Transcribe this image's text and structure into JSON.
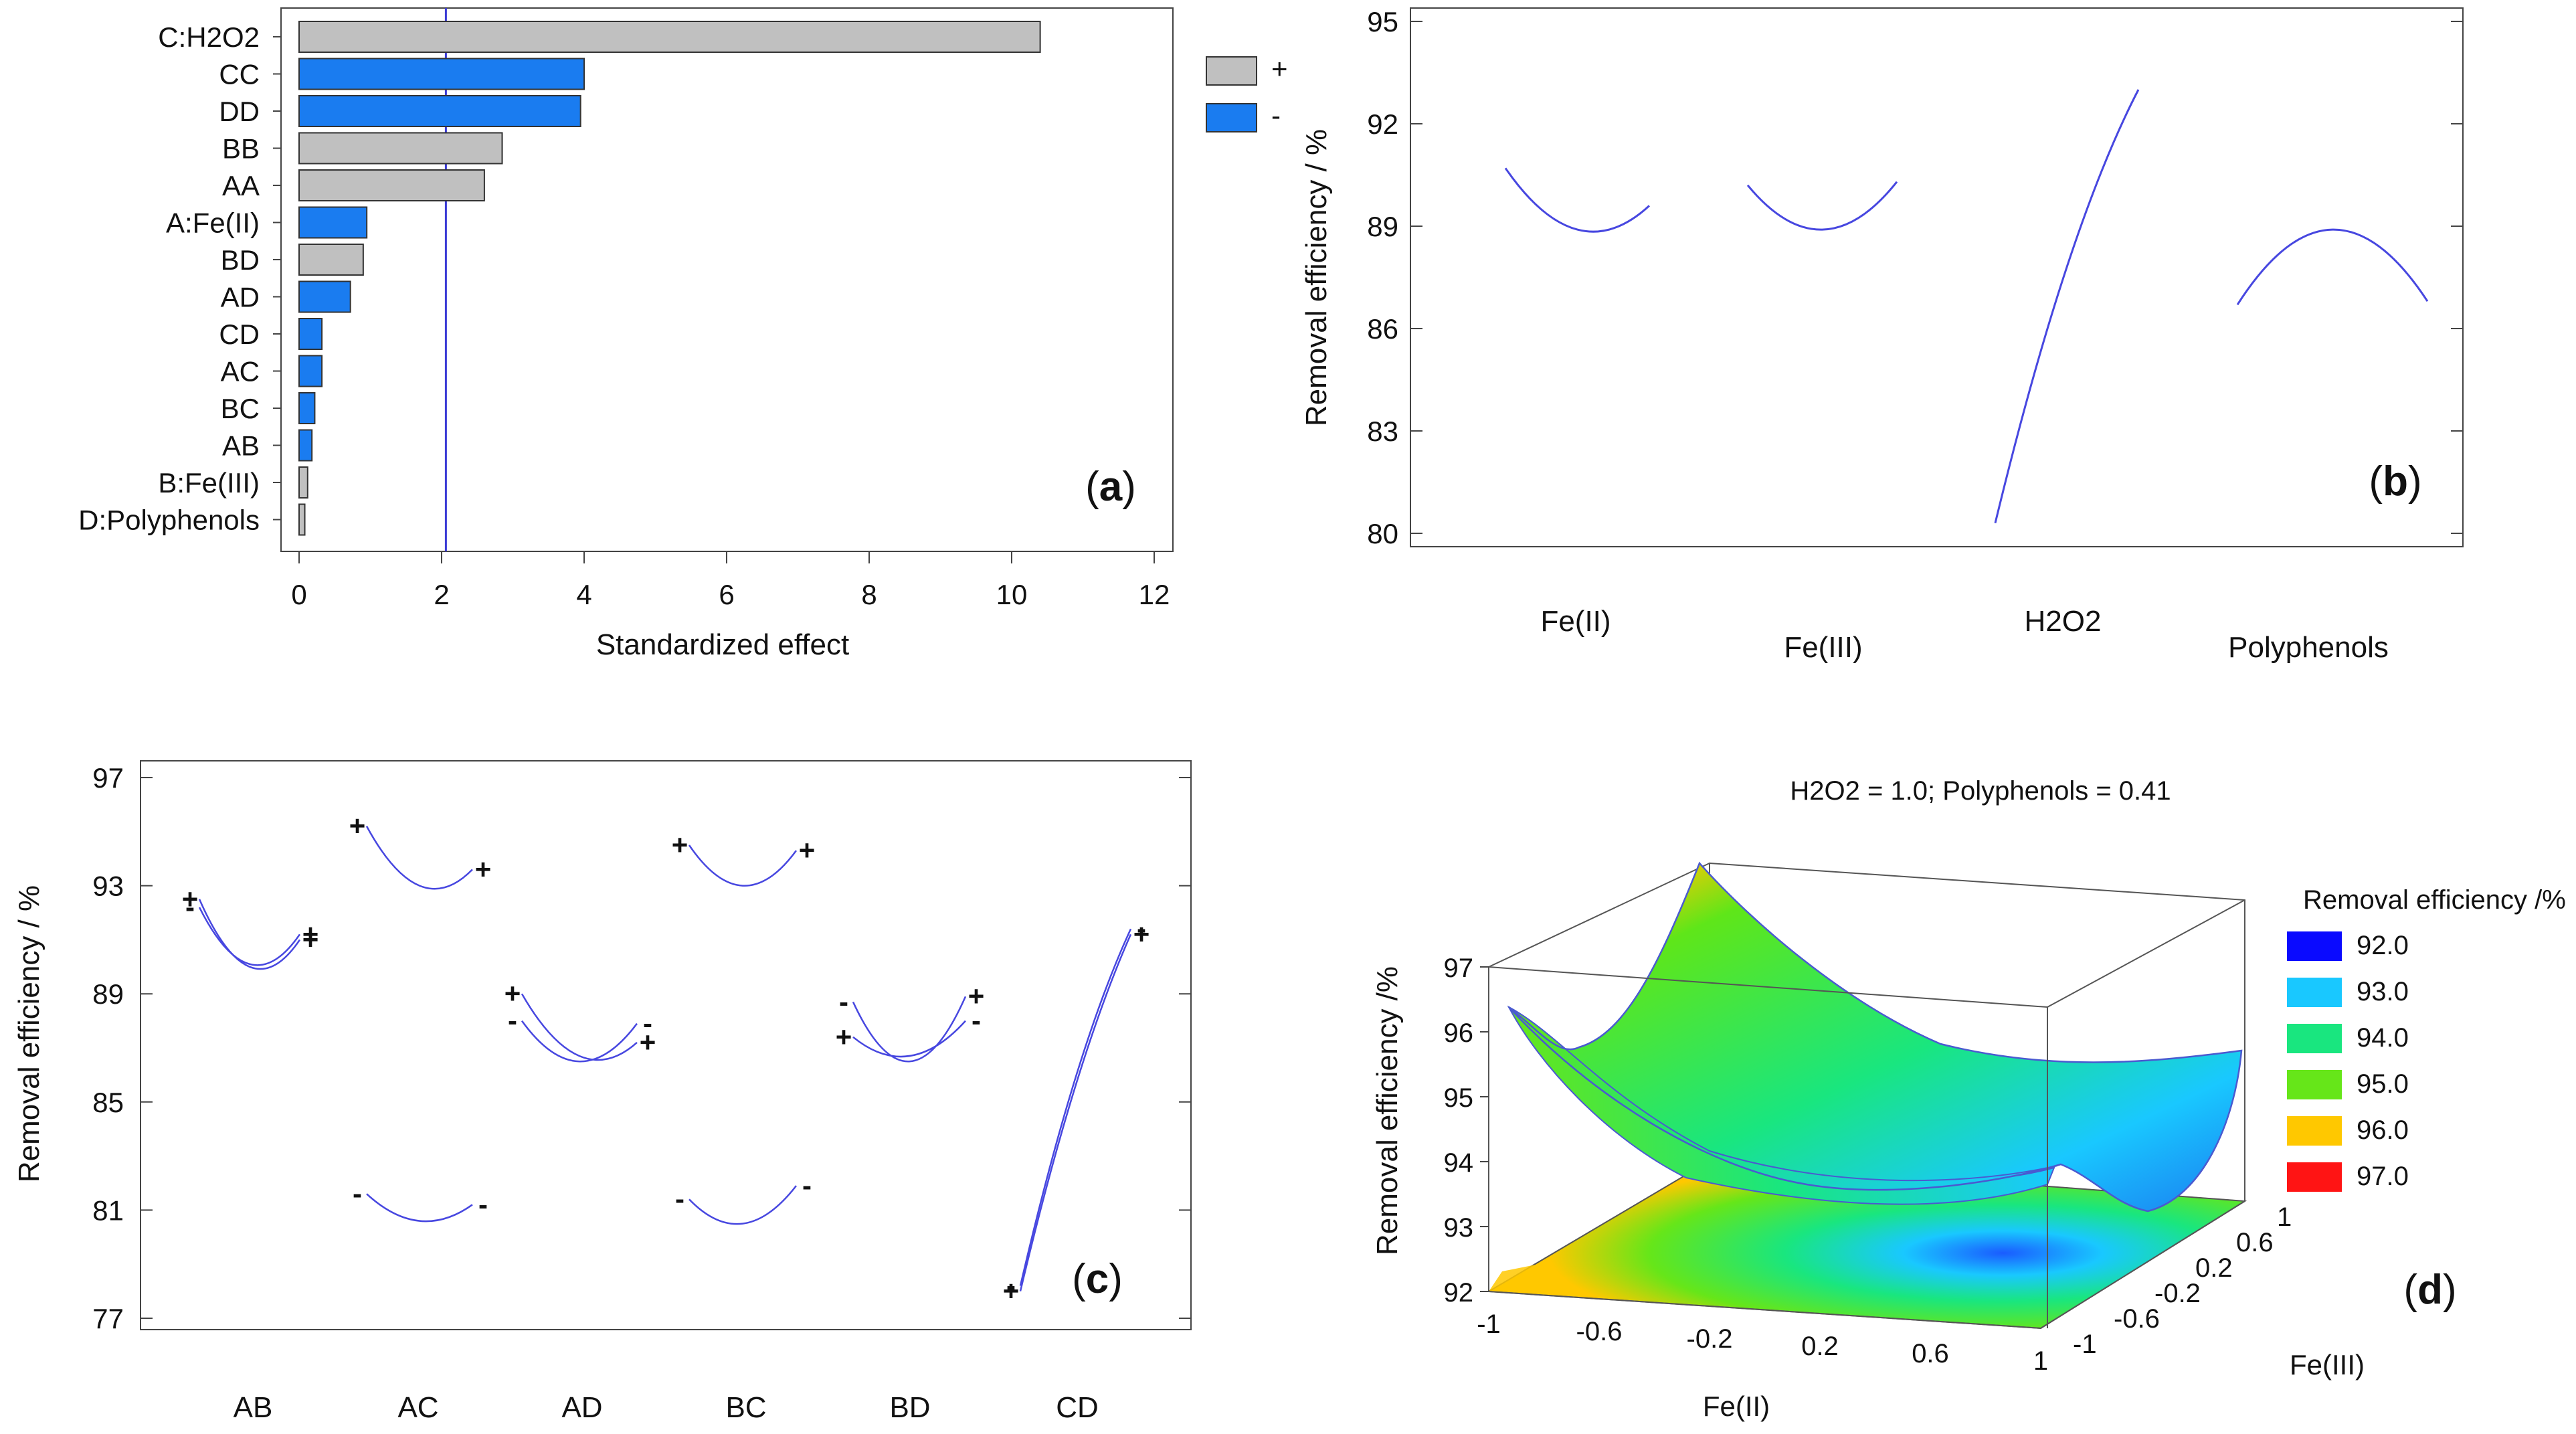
{
  "chart_data": [
    {
      "panel": "a",
      "type": "bar",
      "orientation": "horizontal",
      "title": "",
      "panel_label": "a",
      "xlabel": "Standardized effect",
      "ylabel": "",
      "xlim": [
        0,
        12
      ],
      "xticks": [
        "0",
        "2",
        "4",
        "6",
        "8",
        "10",
        "12"
      ],
      "reference_line": 2.06,
      "categories": [
        "C:H2O2",
        "CC",
        "DD",
        "BB",
        "AA",
        "A:Fe(II)",
        "BD",
        "AD",
        "CD",
        "AC",
        "BC",
        "AB",
        "B:Fe(III)",
        "D:Polyphenols"
      ],
      "values": [
        10.4,
        4.0,
        3.95,
        2.85,
        2.6,
        0.95,
        0.9,
        0.72,
        0.32,
        0.32,
        0.22,
        0.18,
        0.12,
        0.08
      ],
      "signs": [
        "+",
        "-",
        "-",
        "+",
        "+",
        "-",
        "+",
        "-",
        "-",
        "-",
        "-",
        "-",
        "+",
        "+"
      ],
      "legend": [
        {
          "label": "+",
          "color": "#c0c0c0"
        },
        {
          "label": "-",
          "color": "#1a7cf0"
        }
      ],
      "legend_position": "right"
    },
    {
      "panel": "b",
      "type": "line",
      "title": "",
      "panel_label": "b",
      "ylabel": "Removal efficiency / %",
      "ylim": [
        80,
        95
      ],
      "yticks": [
        "80",
        "83",
        "86",
        "89",
        "92",
        "95"
      ],
      "factors": [
        "Fe(II)",
        "Fe(III)",
        "H2O2",
        "Polyphenols"
      ],
      "curve_x": [
        -1,
        0,
        1
      ],
      "series": [
        {
          "name": "Fe(II)",
          "values": [
            90.7,
            88.9,
            89.6
          ]
        },
        {
          "name": "Fe(III)",
          "values": [
            90.2,
            88.9,
            90.3
          ]
        },
        {
          "name": "H2O2",
          "values": [
            80.3,
            87.8,
            93.0
          ]
        },
        {
          "name": "Polyphenols",
          "values": [
            86.7,
            88.9,
            86.8
          ]
        }
      ]
    },
    {
      "panel": "c",
      "type": "line",
      "title": "",
      "panel_label": "c",
      "ylabel": "Removal efficiency / %",
      "ylim": [
        77,
        97
      ],
      "yticks": [
        "77",
        "81",
        "85",
        "89",
        "93",
        "97"
      ],
      "interactions": [
        "AB",
        "AC",
        "AD",
        "BC",
        "BD",
        "CD"
      ],
      "curve_x": [
        -1,
        0,
        1
      ],
      "series": [
        {
          "pair": "AB",
          "level": "+",
          "values": [
            92.5,
            90.0,
            91.0
          ],
          "start_marker": "+",
          "end_marker": "+"
        },
        {
          "pair": "AB",
          "level": "-",
          "values": [
            92.2,
            90.1,
            91.2
          ],
          "start_marker": "-",
          "end_marker": "+"
        },
        {
          "pair": "AC",
          "level": "+",
          "values": [
            95.2,
            93.0,
            93.6
          ],
          "start_marker": "+",
          "end_marker": "+"
        },
        {
          "pair": "AC",
          "level": "-",
          "values": [
            81.6,
            80.6,
            81.2
          ],
          "start_marker": "-",
          "end_marker": "-"
        },
        {
          "pair": "AD",
          "level": "+",
          "values": [
            89.0,
            86.7,
            87.2
          ],
          "start_marker": "+",
          "end_marker": "+"
        },
        {
          "pair": "AD",
          "level": "-",
          "values": [
            88.0,
            86.5,
            87.9
          ],
          "start_marker": "-",
          "end_marker": "-"
        },
        {
          "pair": "BC",
          "level": "+",
          "values": [
            94.5,
            93.0,
            94.3
          ],
          "start_marker": "+",
          "end_marker": "+"
        },
        {
          "pair": "BC",
          "level": "-",
          "values": [
            81.4,
            80.5,
            81.9
          ],
          "start_marker": "-",
          "end_marker": "-"
        },
        {
          "pair": "BD",
          "level": "+",
          "values": [
            87.4,
            86.7,
            88.0
          ],
          "start_marker": "+",
          "end_marker": "-"
        },
        {
          "pair": "BD",
          "level": "-",
          "values": [
            88.7,
            86.5,
            88.9
          ],
          "start_marker": "-",
          "end_marker": "+"
        },
        {
          "pair": "CD",
          "level": "+",
          "values": [
            78.0,
            85.6,
            91.2
          ],
          "start_marker": "+",
          "end_marker": "+"
        },
        {
          "pair": "CD",
          "level": "-",
          "values": [
            78.2,
            85.9,
            91.4
          ],
          "start_marker": "-",
          "end_marker": "-"
        }
      ]
    },
    {
      "panel": "d",
      "type": "surface3d",
      "title": "H2O2 = 1.0; Polyphenols = 0.41",
      "panel_label": "d",
      "xlabel": "Fe(II)",
      "ylabel": "Fe(III)",
      "zlabel": "Removal efficiency /%",
      "xticks": [
        "-1",
        "-0.6",
        "-0.2",
        "0.2",
        "0.6",
        "1"
      ],
      "yticks": [
        "-1",
        "-0.6",
        "-0.2",
        "0.2",
        "0.6",
        "1"
      ],
      "zticks": [
        "92",
        "93",
        "94",
        "95",
        "96",
        "97"
      ],
      "zlim": [
        92,
        97
      ],
      "colorbar": {
        "title": "Removal efficiency /%",
        "levels": [
          {
            "label": "92.0",
            "color": "#0a0aff"
          },
          {
            "label": "93.0",
            "color": "#19c8ff"
          },
          {
            "label": "94.0",
            "color": "#19e67f"
          },
          {
            "label": "95.0",
            "color": "#66e619"
          },
          {
            "label": "96.0",
            "color": "#ffc800"
          },
          {
            "label": "97.0",
            "color": "#ff1414"
          }
        ]
      }
    }
  ],
  "labels": {
    "a": "a",
    "b": "b",
    "c": "c",
    "d": "d"
  }
}
